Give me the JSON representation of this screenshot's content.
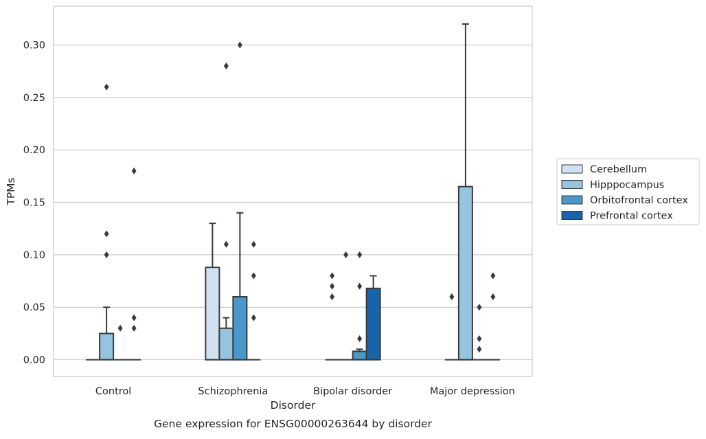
{
  "chart_data": {
    "type": "box",
    "title": "",
    "caption": "Gene expression for ENSG00000263644 by disorder",
    "xlabel": "Disorder",
    "ylabel": "TPMs",
    "ylim": [
      -0.016,
      0.337
    ],
    "yticks": [
      0.0,
      0.05,
      0.1,
      0.15,
      0.2,
      0.25,
      0.3
    ],
    "ytick_labels": [
      "0.00",
      "0.05",
      "0.10",
      "0.15",
      "0.20",
      "0.25",
      "0.30"
    ],
    "grid": "horizontal",
    "legend_position": "right",
    "categories": [
      "Control",
      "Schizophrenia",
      "Bipolar disorder",
      "Major depression"
    ],
    "series": [
      {
        "name": "Cerebellum",
        "color": "#d0e1f2",
        "boxes": [
          {
            "q1": 0,
            "median": 0,
            "q3": 0,
            "whisker_low": 0,
            "whisker_high": 0,
            "outliers": []
          },
          {
            "q1": 0,
            "median": 0,
            "q3": 0.088,
            "whisker_low": 0,
            "whisker_high": 0.13,
            "outliers": []
          },
          {
            "q1": 0,
            "median": 0,
            "q3": 0,
            "whisker_low": 0,
            "whisker_high": 0,
            "outliers": [
              0.06,
              0.07,
              0.08
            ]
          },
          {
            "q1": 0,
            "median": 0,
            "q3": 0,
            "whisker_low": 0,
            "whisker_high": 0,
            "outliers": [
              0.06
            ]
          }
        ]
      },
      {
        "name": "Hipppocampus",
        "color": "#94c4df",
        "boxes": [
          {
            "q1": 0,
            "median": 0,
            "q3": 0.025,
            "whisker_low": 0,
            "whisker_high": 0.05,
            "outliers": [
              0.1,
              0.12,
              0.26
            ]
          },
          {
            "q1": 0,
            "median": 0,
            "q3": 0.03,
            "whisker_low": 0,
            "whisker_high": 0.04,
            "outliers": [
              0.11,
              0.28
            ]
          },
          {
            "q1": 0,
            "median": 0,
            "q3": 0,
            "whisker_low": 0,
            "whisker_high": 0,
            "outliers": [
              0.1
            ]
          },
          {
            "q1": 0,
            "median": 0,
            "q3": 0.165,
            "whisker_low": 0,
            "whisker_high": 0.32,
            "outliers": []
          }
        ]
      },
      {
        "name": "Orbitofrontal cortex",
        "color": "#4a98c9",
        "boxes": [
          {
            "q1": 0,
            "median": 0,
            "q3": 0,
            "whisker_low": 0,
            "whisker_high": 0,
            "outliers": [
              0.03
            ]
          },
          {
            "q1": 0,
            "median": 0,
            "q3": 0.06,
            "whisker_low": 0,
            "whisker_high": 0.14,
            "outliers": [
              0.3
            ]
          },
          {
            "q1": 0,
            "median": 0,
            "q3": 0.008,
            "whisker_low": 0,
            "whisker_high": 0.01,
            "outliers": [
              0.02,
              0.07,
              0.1
            ]
          },
          {
            "q1": 0,
            "median": 0,
            "q3": 0,
            "whisker_low": 0,
            "whisker_high": 0,
            "outliers": [
              0.01,
              0.02,
              0.05
            ]
          }
        ]
      },
      {
        "name": "Prefrontal cortex",
        "color": "#1764ab",
        "boxes": [
          {
            "q1": 0,
            "median": 0,
            "q3": 0,
            "whisker_low": 0,
            "whisker_high": 0,
            "outliers": [
              0.03,
              0.04,
              0.18
            ]
          },
          {
            "q1": 0,
            "median": 0,
            "q3": 0,
            "whisker_low": 0,
            "whisker_high": 0,
            "outliers": [
              0.04,
              0.08,
              0.11
            ]
          },
          {
            "q1": 0,
            "median": 0,
            "q3": 0.068,
            "whisker_low": 0,
            "whisker_high": 0.08,
            "outliers": []
          },
          {
            "q1": 0,
            "median": 0,
            "q3": 0,
            "whisker_low": 0,
            "whisker_high": 0,
            "outliers": [
              0.06,
              0.08
            ]
          }
        ]
      }
    ]
  }
}
